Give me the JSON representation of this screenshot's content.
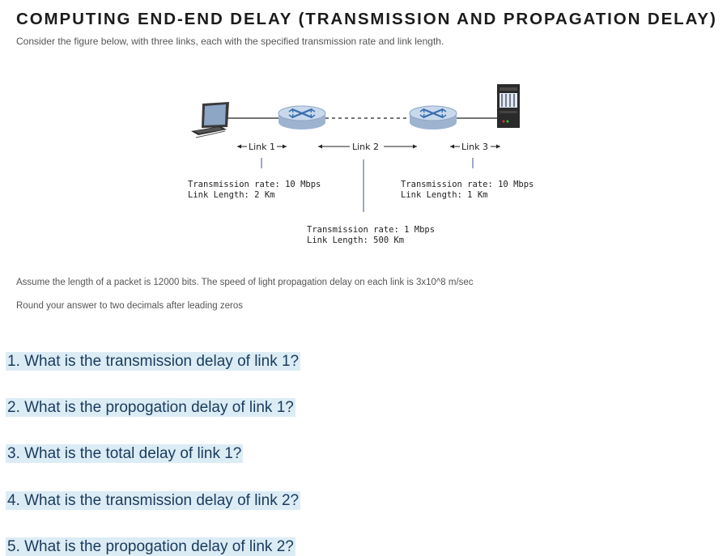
{
  "title": "COMPUTING END-END DELAY (TRANSMISSION AND PROPAGATION DELAY)",
  "intro": "Consider the figure below, with three links, each with the specified transmission rate and link length.",
  "diagram": {
    "link1_label": "Link 1",
    "link2_label": "Link 2",
    "link3_label": "Link 3",
    "link1_rate": "Transmission rate: 10 Mbps",
    "link1_length": "Link Length: 2 Km",
    "link2_rate": "Transmission rate: 1 Mbps",
    "link2_length": "Link Length: 500 Km",
    "link3_rate": "Transmission rate: 10 Mbps",
    "link3_length": "Link Length: 1 Km",
    "icons": [
      "laptop-icon",
      "router-icon",
      "router-icon",
      "server-icon"
    ]
  },
  "assumption": "Assume the length of a packet is 12000 bits. The speed of light propagation delay on each link is 3x10^8 m/sec",
  "rounding": "Round your answer to two decimals after leading zeros",
  "questions": [
    "1. What is the transmission delay of link 1?",
    "2. What is the propogation delay of link 1?",
    "3. What is the total delay of link 1?",
    "4. What is the transmission delay of link 2?",
    "5. What is the propogation delay of link 2?"
  ],
  "colors": {
    "question_highlight": "#dcecf5",
    "question_text": "#1a3b5c",
    "router_body": "#c9d9ec",
    "router_arrows": "#3a6fb0"
  }
}
